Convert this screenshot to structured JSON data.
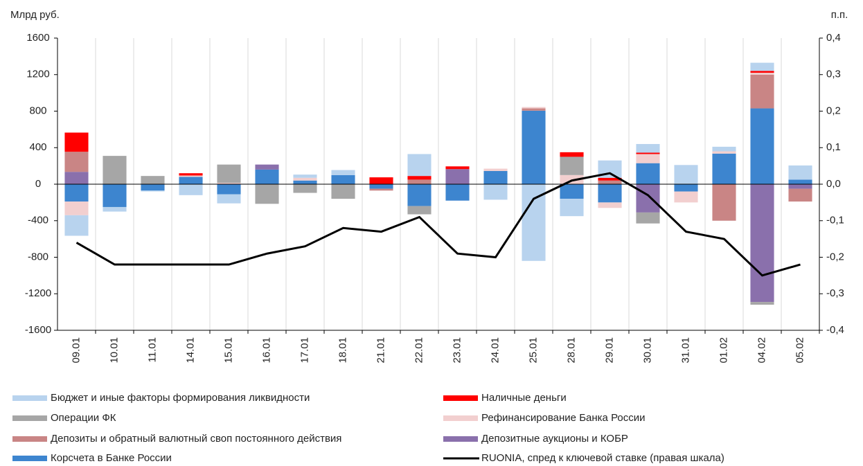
{
  "chart_data": {
    "type": "bar",
    "y_label": "Млрд руб.",
    "y2_label": "п.п.",
    "categories": [
      "09.01",
      "10.01",
      "11.01",
      "14.01",
      "15.01",
      "16.01",
      "17.01",
      "18.01",
      "21.01",
      "22.01",
      "23.01",
      "24.01",
      "25.01",
      "28.01",
      "29.01",
      "30.01",
      "31.01",
      "01.02",
      "04.02",
      "05.02"
    ],
    "stacked": true,
    "grid": true,
    "ylim": [
      -1600,
      1600
    ],
    "yticks": [
      -1600,
      -1200,
      -800,
      -400,
      0,
      400,
      800,
      1200,
      1600
    ],
    "y2lim": [
      -0.4,
      0.4
    ],
    "y2ticks": [
      {
        "value": -0.4,
        "label": "-0,4"
      },
      {
        "value": -0.3,
        "label": "-0,3"
      },
      {
        "value": -0.2,
        "label": "-0,2"
      },
      {
        "value": -0.1,
        "label": "-0,1"
      },
      {
        "value": 0,
        "label": "0,0"
      },
      {
        "value": 0.1,
        "label": "0,1"
      },
      {
        "value": 0.2,
        "label": "0,2"
      },
      {
        "value": 0.3,
        "label": "0,3"
      },
      {
        "value": 0.4,
        "label": "0,4"
      }
    ],
    "series": [
      {
        "name": "Бюджет и иные факторы формирования ликвидности",
        "color": "#b8d3ee",
        "values": [
          -225,
          -50,
          -10,
          -120,
          -100,
          0,
          35,
          55,
          0,
          240,
          0,
          -170,
          -840,
          -190,
          190,
          95,
          210,
          50,
          90,
          155
        ]
      },
      {
        "name": "Наличные деньги",
        "color": "#ff0000",
        "values": [
          210,
          0,
          0,
          25,
          0,
          0,
          0,
          0,
          75,
          40,
          30,
          0,
          0,
          50,
          30,
          15,
          0,
          0,
          20,
          0
        ]
      },
      {
        "name": "Операции ФК",
        "color": "#a6a6a6",
        "values": [
          0,
          310,
          90,
          0,
          200,
          -215,
          -95,
          -160,
          0,
          -90,
          0,
          0,
          0,
          200,
          0,
          -120,
          0,
          0,
          -30,
          0
        ]
      },
      {
        "name": "Рефинансирование Банка России",
        "color": "#f2cfcf",
        "values": [
          -150,
          0,
          0,
          15,
          15,
          0,
          30,
          0,
          0,
          0,
          0,
          25,
          15,
          100,
          -60,
          100,
          -120,
          25,
          20,
          0
        ]
      },
      {
        "name": "Депозиты и обратный валютный своп постоянного действия",
        "color": "#c98585",
        "values": [
          220,
          0,
          0,
          0,
          0,
          0,
          0,
          0,
          -20,
          50,
          0,
          0,
          25,
          0,
          40,
          0,
          0,
          -400,
          370,
          -140
        ]
      },
      {
        "name": "Депозитные аукционы и КОБР",
        "color": "#8a70ac",
        "values": [
          135,
          0,
          0,
          0,
          0,
          55,
          0,
          0,
          0,
          0,
          165,
          0,
          0,
          0,
          0,
          -310,
          0,
          0,
          -1290,
          -50
        ]
      },
      {
        "name": "Корсчета в Банке России",
        "color": "#3d85cf",
        "values": [
          -190,
          -250,
          -70,
          80,
          -110,
          160,
          40,
          100,
          -50,
          -240,
          -180,
          145,
          805,
          -160,
          -200,
          230,
          -80,
          335,
          830,
          50
        ]
      },
      {
        "name": "RUONIA, спред к ключевой ставке (правая шкала)",
        "color": "#000000",
        "type": "line",
        "axis": "y2",
        "values": [
          -0.16,
          -0.22,
          -0.22,
          -0.22,
          -0.22,
          -0.19,
          -0.17,
          -0.12,
          -0.13,
          -0.09,
          -0.19,
          -0.2,
          -0.04,
          0.01,
          0.03,
          -0.03,
          -0.13,
          -0.15,
          -0.25,
          -0.22
        ]
      }
    ]
  }
}
